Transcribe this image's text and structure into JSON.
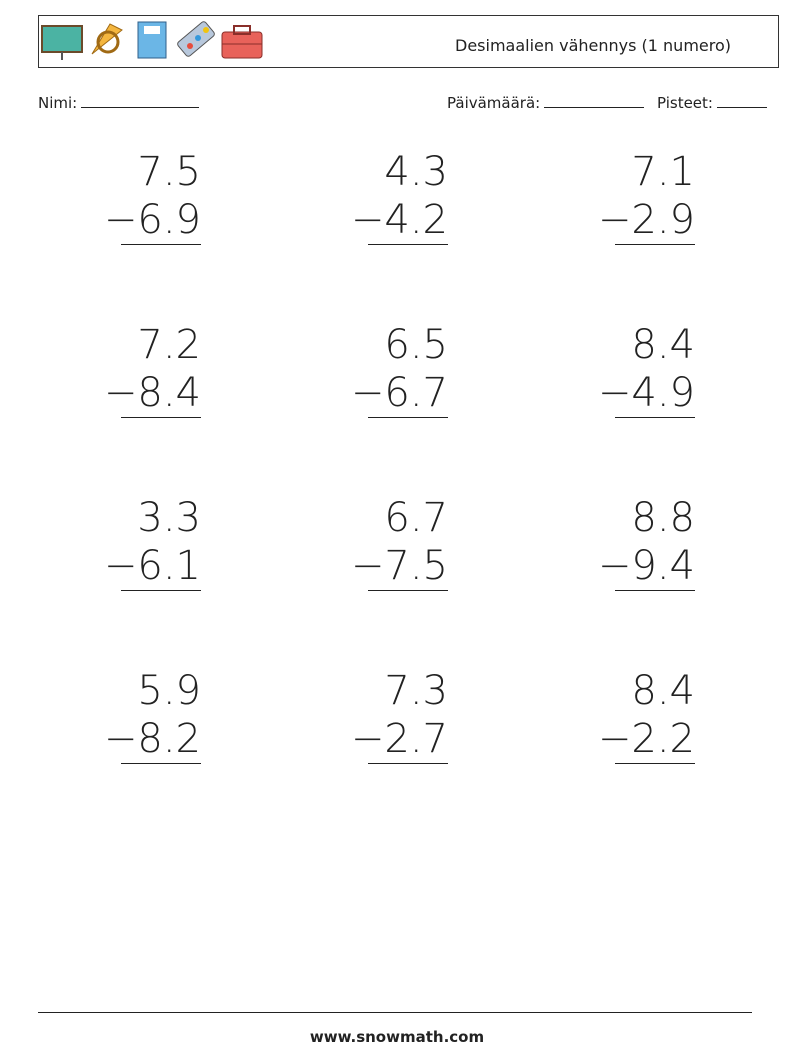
{
  "header": {
    "title": "Desimaalien vähennys (1 numero)"
  },
  "fields": {
    "name": "Nimi:",
    "date": "Päivämäärä:",
    "score": "Pisteet:"
  },
  "problems": [
    {
      "top": "7.5",
      "bottom": "−6.9"
    },
    {
      "top": "4.3",
      "bottom": "−4.2"
    },
    {
      "top": "7.1",
      "bottom": "−2.9"
    },
    {
      "top": "7.2",
      "bottom": "−8.4"
    },
    {
      "top": "6.5",
      "bottom": "−6.7"
    },
    {
      "top": "8.4",
      "bottom": "−4.9"
    },
    {
      "top": "3.3",
      "bottom": "−6.1"
    },
    {
      "top": "6.7",
      "bottom": "−7.5"
    },
    {
      "top": "8.8",
      "bottom": "−9.4"
    },
    {
      "top": "5.9",
      "bottom": "−8.2"
    },
    {
      "top": "7.3",
      "bottom": "−2.7"
    },
    {
      "top": "8.4",
      "bottom": "−2.2"
    }
  ],
  "footer": {
    "url": "www.snowmath.com"
  }
}
